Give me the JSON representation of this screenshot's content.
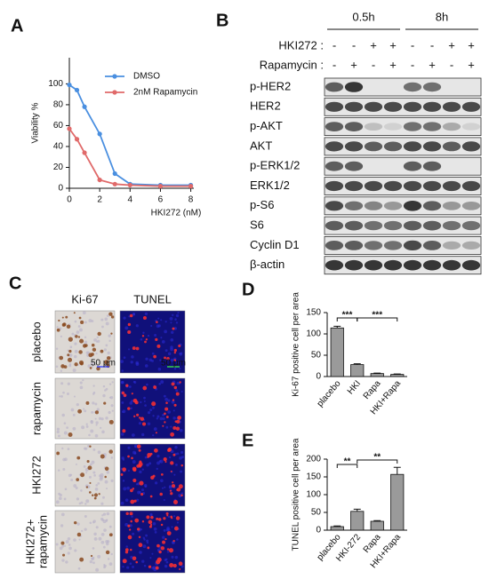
{
  "panel_labels": [
    "A",
    "B",
    "C",
    "D",
    "E"
  ],
  "chart_data": [
    {
      "type": "line",
      "x": [
        0,
        0.5,
        1,
        2,
        3,
        4,
        6,
        8
      ],
      "xlabel": "HKI272 (nM)",
      "ylabel": "Viability %",
      "xlim": [
        0,
        8.2
      ],
      "xticks": [
        0,
        2,
        4,
        6,
        8
      ],
      "ylim": [
        0,
        125
      ],
      "yticks": [
        0,
        20,
        40,
        60,
        80,
        100
      ],
      "series": [
        {
          "name": "DMSO",
          "color": "#4a8fe0",
          "values": [
            99,
            94,
            78,
            52,
            14,
            4,
            3,
            3
          ]
        },
        {
          "name": "2nM Rapamycin",
          "color": "#e06a6a",
          "values": [
            57,
            47,
            34,
            8,
            4,
            3,
            2,
            2
          ]
        }
      ]
    },
    {
      "type": "bar",
      "categories": [
        "placebo",
        "HKI",
        "Rapa",
        "HKI+Rapa"
      ],
      "values": [
        114,
        28,
        7,
        5
      ],
      "errors": [
        4,
        2,
        1,
        1
      ],
      "color": "#9a9a9a",
      "ylabel": "Ki-67 positive cell per area",
      "ylim": [
        0,
        150
      ],
      "yticks": [
        0,
        50,
        100,
        150
      ],
      "annotations": [
        "***",
        "***"
      ]
    },
    {
      "type": "bar",
      "categories": [
        "placebo",
        "HKI-272",
        "Rapa",
        "HKI+Rapa"
      ],
      "values": [
        10,
        53,
        25,
        157
      ],
      "errors": [
        2,
        6,
        2,
        20
      ],
      "color": "#9a9a9a",
      "ylabel": "TUNEL positive cell per area",
      "ylim": [
        0,
        200
      ],
      "yticks": [
        0,
        50,
        100,
        150,
        200
      ],
      "annotations": [
        "**",
        "**"
      ]
    }
  ],
  "blot": {
    "time_points": [
      "0.5h",
      "8h"
    ],
    "treatments": [
      {
        "label": "HKI272 :",
        "signs": [
          "-",
          "-",
          "+",
          "+",
          "-",
          "-",
          "+",
          "+"
        ]
      },
      {
        "label": "Rapamycin :",
        "signs": [
          "-",
          "+",
          "-",
          "+",
          "-",
          "+",
          "-",
          "+"
        ]
      }
    ],
    "proteins": [
      "p-HER2",
      "HER2",
      "p-AKT",
      "AKT",
      "p-ERK1/2",
      "ERK1/2",
      "p-S6",
      "S6",
      "Cyclin D1",
      "β-actin"
    ]
  },
  "micrographs": {
    "columns": [
      "Ki-67",
      "TUNEL"
    ],
    "rows": [
      [
        "placebo"
      ],
      [
        "rapamycin"
      ],
      [
        "HKI272"
      ],
      [
        "HKI272+",
        "rapamycin"
      ]
    ],
    "scale_bar": "50 μm"
  }
}
